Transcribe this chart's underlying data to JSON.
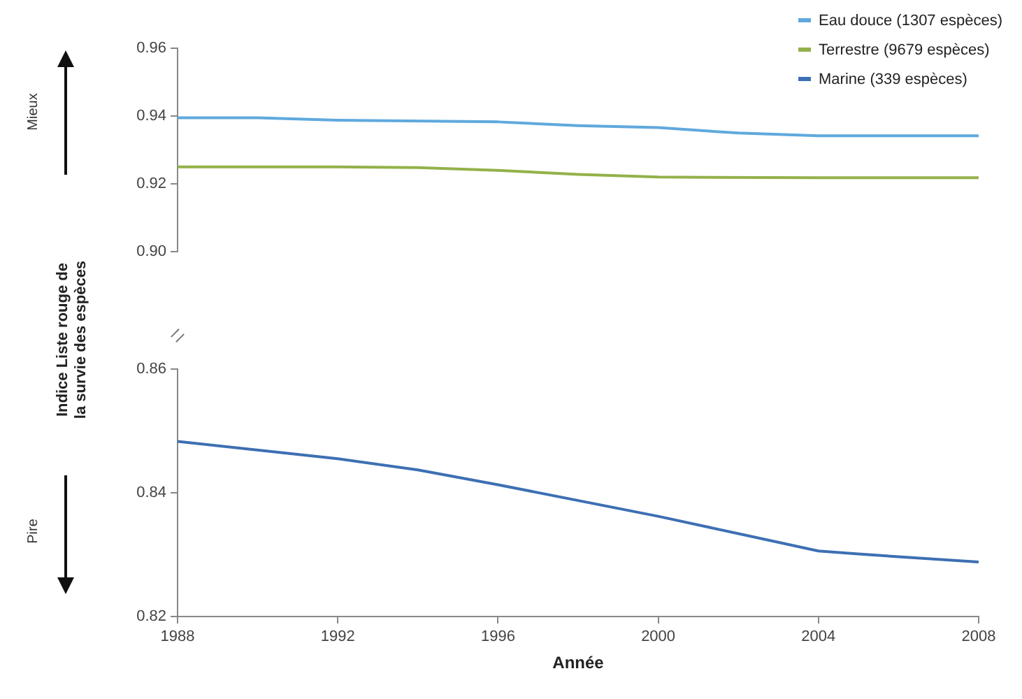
{
  "chart_data": [
    {
      "type": "line",
      "ylabel": "Indice Liste rouge de la survie des espèces",
      "annotations": [
        "Mieux"
      ],
      "legend": "top right",
      "grid": false,
      "tick_labels": "y",
      "marker": "none",
      "line_style": "solid",
      "xlim": [
        1988,
        2008
      ],
      "xticks": [
        1988,
        1992,
        1996,
        2000,
        2004,
        2008
      ],
      "ylim": [
        0.9,
        0.96
      ],
      "yticks": [
        {
          "value": 0.9,
          "label": "0.90"
        },
        0.92,
        0.94,
        0.96
      ],
      "series": [
        {
          "name": "Eau douce (1307 espèces)",
          "color": "#5fa9dd",
          "x": [
            1988,
            1990,
            1992,
            1996,
            1998,
            2000,
            2002,
            2004,
            2008
          ],
          "values": [
            0.9395,
            0.9395,
            0.9388,
            0.9383,
            0.9372,
            0.9366,
            0.935,
            0.9342,
            0.9342
          ]
        },
        {
          "name": "Terrestre (9679 espèces)",
          "color": "#93b14a",
          "x": [
            1988,
            1992,
            1994,
            1996,
            1998,
            2000,
            2004,
            2008
          ],
          "values": [
            0.925,
            0.925,
            0.9248,
            0.924,
            0.9228,
            0.922,
            0.9218,
            0.9218
          ]
        }
      ]
    },
    {
      "type": "line",
      "xlabel": "Année",
      "annotations": [
        "Pire"
      ],
      "legend": "top right",
      "grid": false,
      "marker": "none",
      "line_style": "solid",
      "xlim": [
        1988,
        2008
      ],
      "xticks": [
        1988,
        1992,
        1996,
        2000,
        2004,
        2008
      ],
      "ylim": [
        0.82,
        0.86
      ],
      "yticks": [
        0.82,
        0.84,
        0.86
      ],
      "series": [
        {
          "name": "Marine (339 espèces)",
          "color": "#3d6fb3",
          "x": [
            1988,
            1992,
            1994,
            1996,
            2000,
            2004,
            2005,
            2008
          ],
          "values": [
            0.8483,
            0.8455,
            0.8437,
            0.8413,
            0.8362,
            0.8306,
            0.8301,
            0.8288
          ]
        }
      ]
    }
  ]
}
